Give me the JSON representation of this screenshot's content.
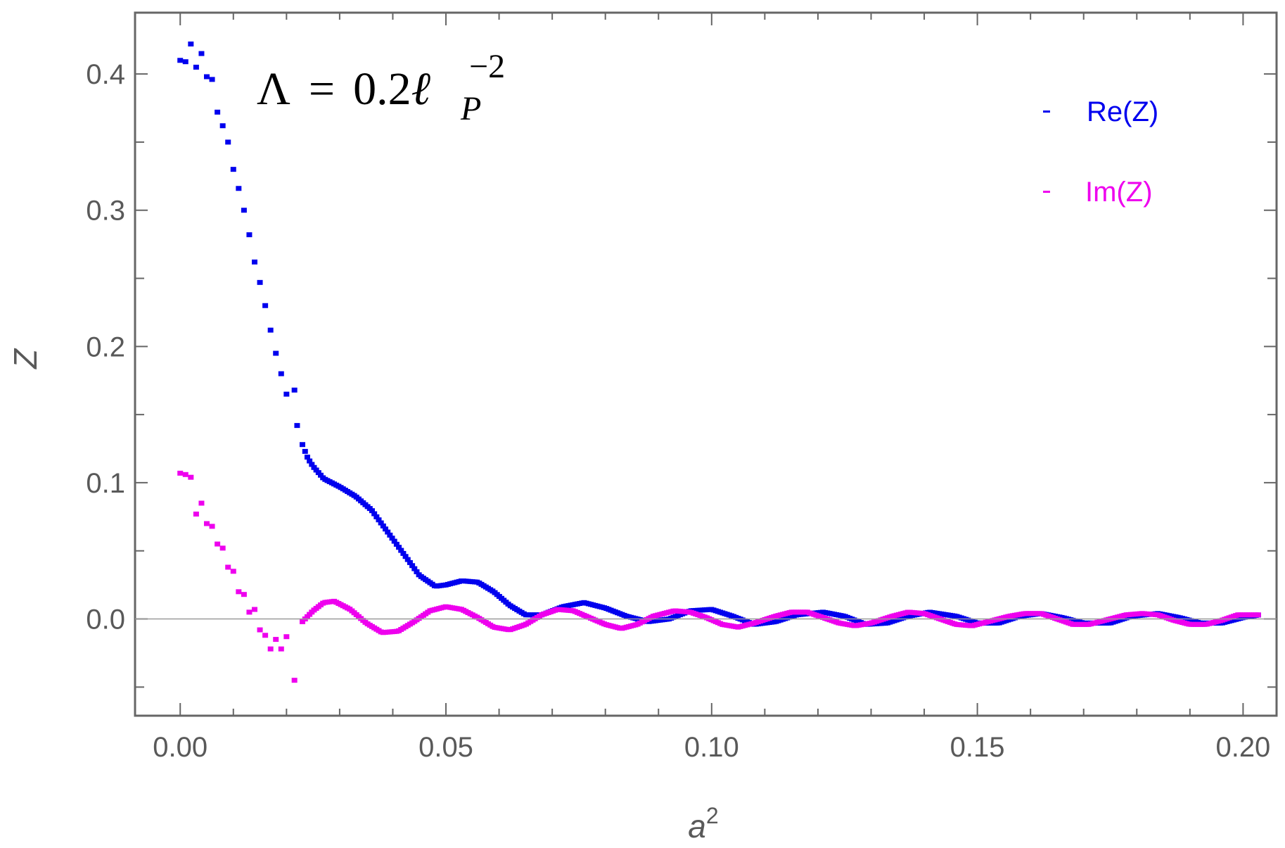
{
  "chart_data": {
    "type": "scatter",
    "title": "",
    "annotation": {
      "lambda": "Λ",
      "equals": "=",
      "value": "0.2",
      "ell": "ℓ",
      "subscript": "P",
      "superscript": "−2"
    },
    "xlabel": {
      "base": "a",
      "exponent": "2"
    },
    "ylabel": "Z",
    "xlim": [
      -0.0085,
      0.2063
    ],
    "ylim": [
      -0.071,
      0.445
    ],
    "x_ticks": [
      0.0,
      0.05,
      0.1,
      0.15,
      0.2
    ],
    "x_tick_labels": [
      "0.00",
      "0.05",
      "0.10",
      "0.15",
      "0.20"
    ],
    "y_ticks": [
      0.0,
      0.1,
      0.2,
      0.3,
      0.4
    ],
    "y_tick_labels": [
      "0.0",
      "0.1",
      "0.2",
      "0.3",
      "0.4"
    ],
    "grid": false,
    "zero_line": true,
    "legend_position": "top-right",
    "series": [
      {
        "name": "Re(Z)",
        "color": "#0000ee",
        "anchors": [
          [
            0.0,
            0.41
          ],
          [
            0.001,
            0.409
          ],
          [
            0.002,
            0.422
          ],
          [
            0.003,
            0.405
          ],
          [
            0.004,
            0.415
          ],
          [
            0.005,
            0.398
          ],
          [
            0.006,
            0.396
          ],
          [
            0.007,
            0.372
          ],
          [
            0.008,
            0.362
          ],
          [
            0.009,
            0.35
          ],
          [
            0.01,
            0.33
          ],
          [
            0.011,
            0.316
          ],
          [
            0.012,
            0.3
          ],
          [
            0.013,
            0.282
          ],
          [
            0.014,
            0.262
          ],
          [
            0.015,
            0.247
          ],
          [
            0.016,
            0.23
          ],
          [
            0.017,
            0.212
          ],
          [
            0.018,
            0.195
          ],
          [
            0.019,
            0.18
          ],
          [
            0.02,
            0.165
          ],
          [
            0.0215,
            0.168
          ],
          [
            0.022,
            0.142
          ],
          [
            0.023,
            0.128
          ],
          [
            0.024,
            0.118
          ],
          [
            0.025,
            0.112
          ],
          [
            0.027,
            0.103
          ],
          [
            0.03,
            0.097
          ],
          [
            0.033,
            0.09
          ],
          [
            0.036,
            0.08
          ],
          [
            0.039,
            0.064
          ],
          [
            0.042,
            0.048
          ],
          [
            0.045,
            0.032
          ],
          [
            0.048,
            0.024
          ],
          [
            0.05,
            0.025
          ],
          [
            0.053,
            0.028
          ],
          [
            0.056,
            0.027
          ],
          [
            0.059,
            0.02
          ],
          [
            0.062,
            0.01
          ],
          [
            0.065,
            0.003
          ],
          [
            0.068,
            0.003
          ],
          [
            0.072,
            0.009
          ],
          [
            0.076,
            0.012
          ],
          [
            0.08,
            0.008
          ],
          [
            0.084,
            0.002
          ],
          [
            0.088,
            -0.002
          ],
          [
            0.092,
            0.0
          ],
          [
            0.096,
            0.006
          ],
          [
            0.1,
            0.007
          ],
          [
            0.104,
            0.002
          ],
          [
            0.108,
            -0.004
          ],
          [
            0.112,
            -0.002
          ],
          [
            0.116,
            0.003
          ],
          [
            0.121,
            0.005
          ],
          [
            0.125,
            0.002
          ],
          [
            0.129,
            -0.004
          ],
          [
            0.133,
            -0.003
          ],
          [
            0.137,
            0.002
          ],
          [
            0.141,
            0.005
          ],
          [
            0.146,
            0.002
          ],
          [
            0.15,
            -0.003
          ],
          [
            0.154,
            -0.003
          ],
          [
            0.158,
            0.002
          ],
          [
            0.162,
            0.004
          ],
          [
            0.166,
            0.001
          ],
          [
            0.17,
            -0.003
          ],
          [
            0.175,
            -0.003
          ],
          [
            0.179,
            0.002
          ],
          [
            0.184,
            0.004
          ],
          [
            0.188,
            0.001
          ],
          [
            0.192,
            -0.003
          ],
          [
            0.196,
            -0.003
          ],
          [
            0.2,
            0.001
          ],
          [
            0.203,
            0.003
          ]
        ]
      },
      {
        "name": "Im(Z)",
        "color": "#ee00ee",
        "anchors": [
          [
            0.0,
            0.107
          ],
          [
            0.001,
            0.106
          ],
          [
            0.002,
            0.104
          ],
          [
            0.003,
            0.077
          ],
          [
            0.004,
            0.085
          ],
          [
            0.005,
            0.07
          ],
          [
            0.006,
            0.068
          ],
          [
            0.007,
            0.055
          ],
          [
            0.008,
            0.052
          ],
          [
            0.009,
            0.038
          ],
          [
            0.01,
            0.035
          ],
          [
            0.011,
            0.02
          ],
          [
            0.012,
            0.018
          ],
          [
            0.013,
            0.005
          ],
          [
            0.014,
            0.007
          ],
          [
            0.015,
            -0.008
          ],
          [
            0.016,
            -0.012
          ],
          [
            0.017,
            -0.022
          ],
          [
            0.018,
            -0.015
          ],
          [
            0.019,
            -0.022
          ],
          [
            0.02,
            -0.013
          ],
          [
            0.0215,
            -0.045
          ],
          [
            0.023,
            -0.002
          ],
          [
            0.025,
            0.006
          ],
          [
            0.027,
            0.012
          ],
          [
            0.029,
            0.013
          ],
          [
            0.032,
            0.007
          ],
          [
            0.035,
            -0.003
          ],
          [
            0.038,
            -0.01
          ],
          [
            0.041,
            -0.009
          ],
          [
            0.044,
            -0.002
          ],
          [
            0.047,
            0.006
          ],
          [
            0.05,
            0.009
          ],
          [
            0.053,
            0.007
          ],
          [
            0.056,
            0.001
          ],
          [
            0.059,
            -0.006
          ],
          [
            0.062,
            -0.008
          ],
          [
            0.065,
            -0.004
          ],
          [
            0.068,
            0.003
          ],
          [
            0.071,
            0.007
          ],
          [
            0.074,
            0.006
          ],
          [
            0.077,
            0.001
          ],
          [
            0.08,
            -0.004
          ],
          [
            0.083,
            -0.007
          ],
          [
            0.086,
            -0.004
          ],
          [
            0.089,
            0.002
          ],
          [
            0.093,
            0.006
          ],
          [
            0.096,
            0.005
          ],
          [
            0.099,
            0.001
          ],
          [
            0.102,
            -0.004
          ],
          [
            0.105,
            -0.006
          ],
          [
            0.108,
            -0.003
          ],
          [
            0.112,
            0.002
          ],
          [
            0.115,
            0.005
          ],
          [
            0.118,
            0.005
          ],
          [
            0.121,
            0.001
          ],
          [
            0.124,
            -0.003
          ],
          [
            0.127,
            -0.005
          ],
          [
            0.13,
            -0.003
          ],
          [
            0.134,
            0.002
          ],
          [
            0.137,
            0.005
          ],
          [
            0.14,
            0.004
          ],
          [
            0.143,
            0.0
          ],
          [
            0.146,
            -0.004
          ],
          [
            0.149,
            -0.005
          ],
          [
            0.152,
            -0.002
          ],
          [
            0.156,
            0.002
          ],
          [
            0.159,
            0.004
          ],
          [
            0.162,
            0.004
          ],
          [
            0.165,
            0.0
          ],
          [
            0.168,
            -0.004
          ],
          [
            0.171,
            -0.004
          ],
          [
            0.174,
            -0.001
          ],
          [
            0.178,
            0.003
          ],
          [
            0.181,
            0.004
          ],
          [
            0.184,
            0.003
          ],
          [
            0.187,
            -0.001
          ],
          [
            0.19,
            -0.004
          ],
          [
            0.193,
            -0.004
          ],
          [
            0.196,
            -0.001
          ],
          [
            0.199,
            0.003
          ],
          [
            0.203,
            0.003
          ]
        ]
      }
    ]
  }
}
